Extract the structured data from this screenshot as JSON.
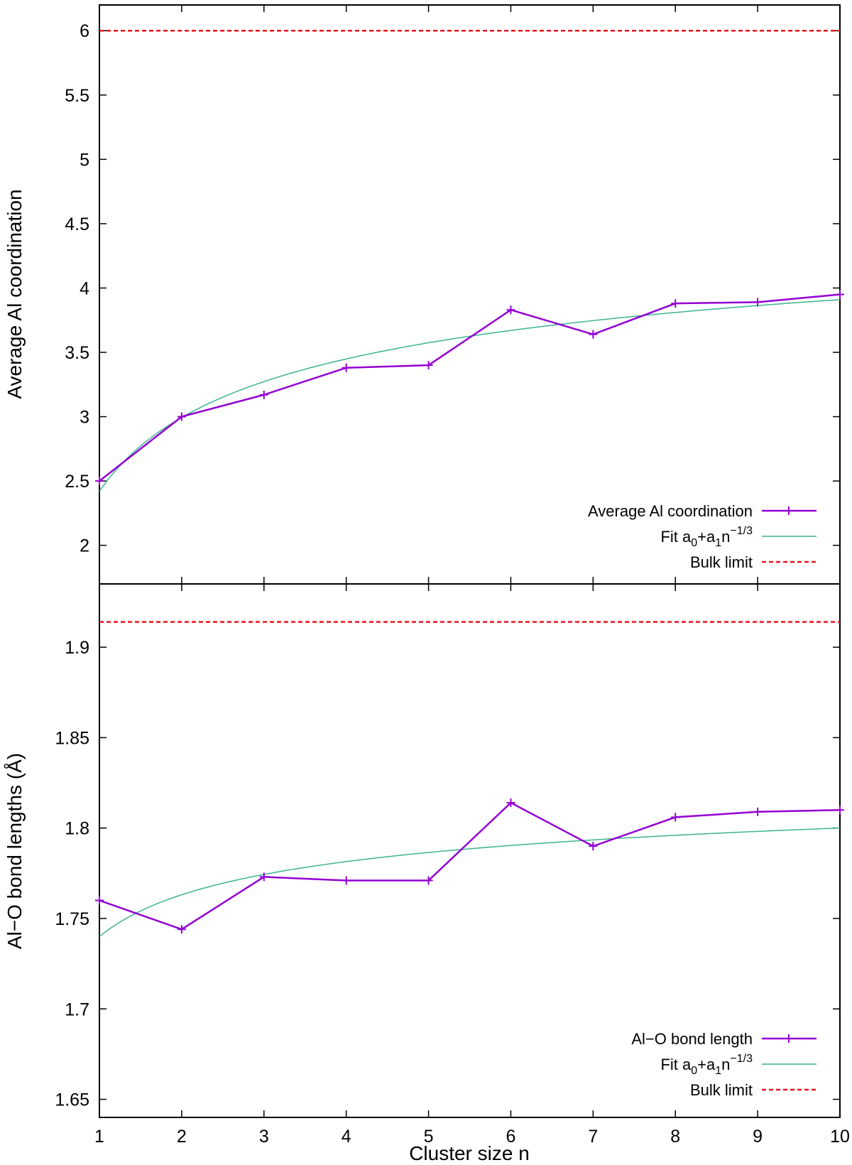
{
  "chart_data": [
    {
      "type": "line",
      "panel": "top",
      "title": "",
      "xlabel": "",
      "ylabel": "Average Al coordination",
      "xlim": [
        1,
        10
      ],
      "ylim": [
        1.7,
        6.2
      ],
      "xticks": [],
      "yticks": [
        "2",
        "2.5",
        "3",
        "3.5",
        "4",
        "4.5",
        "5",
        "5.5",
        "6"
      ],
      "grid": false,
      "legend_position": "bottom-right",
      "legend": {
        "data": "Average Al coordination",
        "fit_prefix": "Fit a",
        "fit_sub0": "0",
        "fit_plus": "+a",
        "fit_sub1": "1",
        "fit_n": "n",
        "fit_exp": "−1/3",
        "bulk": "Bulk limit"
      },
      "series": [
        {
          "name": "Average Al coordination",
          "color": "#9400d3",
          "x": [
            1,
            2,
            3,
            4,
            5,
            6,
            7,
            8,
            9,
            10
          ],
          "y": [
            2.5,
            3.0,
            3.17,
            3.38,
            3.4,
            3.83,
            3.64,
            3.88,
            3.89,
            3.95
          ]
        }
      ],
      "fit": {
        "name": "Fit a0+a1n^-1/3",
        "color": "#3cb38f",
        "a0": 5.2,
        "a1": -2.78
      },
      "bulk": {
        "name": "Bulk limit",
        "color": "#e8141c",
        "value": 6.0
      }
    },
    {
      "type": "line",
      "panel": "bottom",
      "title": "",
      "xlabel": "Cluster size n",
      "ylabel": "Al−O bond lengths (Å)",
      "xlim": [
        1,
        10
      ],
      "ylim": [
        1.64,
        1.935
      ],
      "xticks": [
        "1",
        "2",
        "3",
        "4",
        "5",
        "6",
        "7",
        "8",
        "9",
        "10"
      ],
      "yticks": [
        "1.65",
        "1.7",
        "1.75",
        "1.8",
        "1.85",
        "1.9"
      ],
      "grid": false,
      "legend_position": "bottom-right",
      "legend": {
        "data": "Al−O bond length",
        "fit_prefix": "Fit a",
        "fit_sub0": "0",
        "fit_plus": "+a",
        "fit_sub1": "1",
        "fit_n": "n",
        "fit_exp": "−1/3",
        "bulk": "Bulk limit"
      },
      "series": [
        {
          "name": "Al−O bond length",
          "color": "#9400d3",
          "x": [
            1,
            2,
            3,
            4,
            5,
            6,
            7,
            8,
            9,
            10
          ],
          "y": [
            1.76,
            1.744,
            1.773,
            1.771,
            1.771,
            1.814,
            1.79,
            1.806,
            1.809,
            1.81
          ]
        }
      ],
      "fit": {
        "name": "Fit a0+a1n^-1/3",
        "color": "#3cb38f",
        "a0": 1.852,
        "a1": -0.112
      },
      "bulk": {
        "name": "Bulk limit",
        "color": "#e8141c",
        "value": 1.914
      }
    }
  ]
}
